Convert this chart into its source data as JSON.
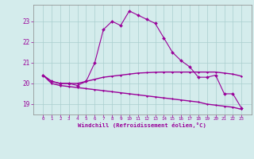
{
  "xlabel": "Windchill (Refroidissement éolien,°C)",
  "hours": [
    0,
    1,
    2,
    3,
    4,
    5,
    6,
    7,
    8,
    9,
    10,
    11,
    12,
    13,
    14,
    15,
    16,
    17,
    18,
    19,
    20,
    21,
    22,
    23
  ],
  "windchill": [
    20.4,
    20.1,
    20.0,
    20.0,
    19.9,
    20.1,
    21.0,
    22.6,
    23.0,
    22.8,
    23.5,
    23.3,
    23.1,
    22.9,
    22.2,
    21.5,
    21.1,
    20.8,
    20.3,
    20.3,
    20.4,
    19.5,
    19.5,
    18.8
  ],
  "temp_upper": [
    20.4,
    20.1,
    20.0,
    20.0,
    20.0,
    20.1,
    20.2,
    20.3,
    20.35,
    20.4,
    20.45,
    20.5,
    20.52,
    20.54,
    20.55,
    20.55,
    20.55,
    20.55,
    20.55,
    20.55,
    20.55,
    20.5,
    20.45,
    20.35
  ],
  "temp_lower": [
    20.4,
    20.0,
    19.9,
    19.85,
    19.8,
    19.75,
    19.7,
    19.65,
    19.6,
    19.55,
    19.5,
    19.45,
    19.4,
    19.35,
    19.3,
    19.25,
    19.2,
    19.15,
    19.1,
    19.0,
    18.95,
    18.9,
    18.85,
    18.75
  ],
  "line_color": "#990099",
  "bg_color": "#d4ecec",
  "grid_color": "#aacece",
  "ylim": [
    18.5,
    23.8
  ],
  "yticks": [
    19,
    20,
    21,
    22,
    23
  ],
  "xticks": [
    0,
    1,
    2,
    3,
    4,
    5,
    6,
    7,
    8,
    9,
    10,
    11,
    12,
    13,
    14,
    15,
    16,
    17,
    18,
    19,
    20,
    21,
    22,
    23
  ]
}
